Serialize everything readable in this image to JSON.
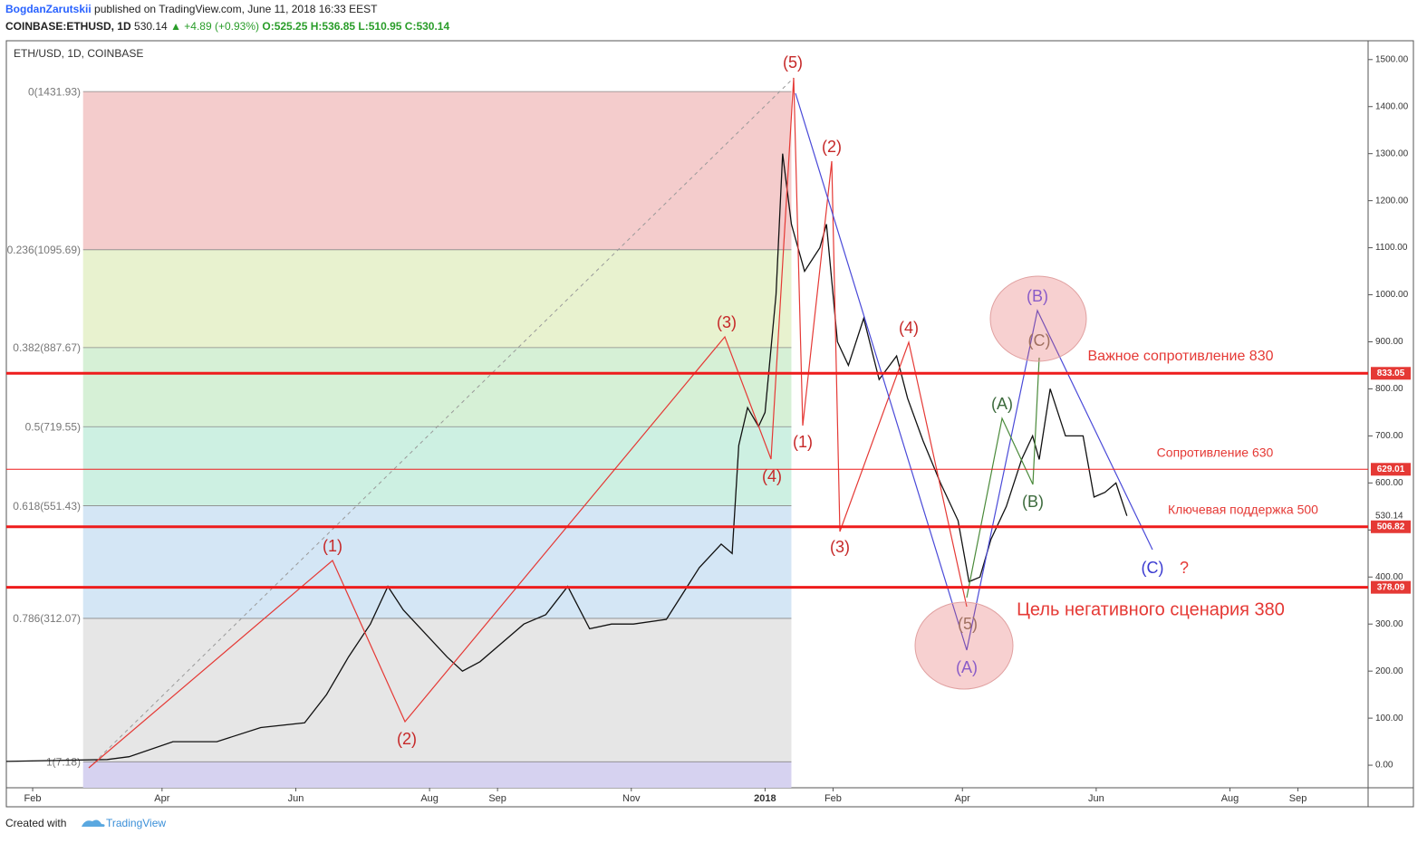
{
  "header": {
    "author": "BogdanZarutskii",
    "published": "published on TradingView.com, June 11, 2018 16:33 EEST",
    "symbol": "COINBASE:ETHUSD, 1D",
    "last": "530.14",
    "change": "▲ +4.89 (+0.93%)",
    "ohlc": "O:525.25 H:536.85 L:510.95 C:530.14"
  },
  "chart_data": {
    "type": "line",
    "title": "ETH/USD, 1D, COINBASE",
    "color": "#111111",
    "x": [
      -346,
      -300,
      -290,
      -270,
      -250,
      -230,
      -210,
      -200,
      -190,
      -180,
      -172,
      -165,
      -155,
      -145,
      -138,
      -130,
      -120,
      -110,
      -100,
      -90,
      -80,
      -70,
      -60,
      -45,
      -30,
      -20,
      -15,
      -12,
      -8,
      -3,
      0,
      5,
      8,
      12,
      18,
      25,
      28,
      33,
      38,
      45,
      52,
      60,
      65,
      72,
      80,
      88,
      93,
      98,
      103,
      110,
      117,
      122,
      125,
      130,
      137,
      145,
      150,
      155,
      160,
      165
    ],
    "values": [
      8,
      12,
      18,
      50,
      50,
      80,
      90,
      150,
      230,
      300,
      380,
      330,
      280,
      230,
      200,
      220,
      260,
      300,
      320,
      380,
      290,
      300,
      300,
      310,
      420,
      470,
      450,
      680,
      760,
      720,
      750,
      1000,
      1300,
      1150,
      1050,
      1100,
      1150,
      900,
      850,
      950,
      820,
      870,
      780,
      690,
      600,
      520,
      390,
      400,
      480,
      550,
      650,
      700,
      650,
      800,
      700,
      700,
      570,
      580,
      600,
      530
    ],
    "xlim": [
      -346,
      275
    ],
    "xticks": [
      {
        "value": -334,
        "label": "Feb"
      },
      {
        "value": -275,
        "label": "Apr"
      },
      {
        "value": -214,
        "label": "Jun"
      },
      {
        "value": -153,
        "label": "Aug"
      },
      {
        "value": -122,
        "label": "Sep"
      },
      {
        "value": -61,
        "label": "Nov"
      },
      {
        "value": 0,
        "label": "2018"
      },
      {
        "value": 31,
        "label": "Feb"
      },
      {
        "value": 90,
        "label": "Apr"
      },
      {
        "value": 151,
        "label": "Jun"
      },
      {
        "value": 212,
        "label": "Aug"
      },
      {
        "value": 243,
        "label": "Sep"
      }
    ],
    "ylim": [
      -48,
      1540
    ],
    "yticks": [
      {
        "value": 0,
        "label": "0.00"
      },
      {
        "value": 100,
        "label": "100.00"
      },
      {
        "value": 200,
        "label": "200.00"
      },
      {
        "value": 300,
        "label": "300.00"
      },
      {
        "value": 400,
        "label": "400.00"
      },
      {
        "value": 500,
        "label": "500.00"
      },
      {
        "value": 600,
        "label": "600.00"
      },
      {
        "value": 700,
        "label": "700.00"
      },
      {
        "value": 800,
        "label": "800.00"
      },
      {
        "value": 900,
        "label": "900.00"
      },
      {
        "value": 1000,
        "label": "1000.00"
      },
      {
        "value": 1100,
        "label": "1100.00"
      },
      {
        "value": 1200,
        "label": "1200.00"
      },
      {
        "value": 1300,
        "label": "1300.00"
      },
      {
        "value": 1400,
        "label": "1400.00"
      },
      {
        "value": 1500,
        "label": "1500.00"
      }
    ],
    "fib": {
      "x": [
        -311,
        12
      ],
      "levels": [
        {
          "label": "0(1431.93)",
          "value": 1431.93,
          "color": "#f4cccc"
        },
        {
          "label": "0.236(1095.69)",
          "value": 1095.69,
          "color": "#e8f2cf"
        },
        {
          "label": "0.382(887.67)",
          "value": 887.67,
          "color": "#d6f0d6"
        },
        {
          "label": "0.5(719.55)",
          "value": 719.55,
          "color": "#cdf0e2"
        },
        {
          "label": "0.618(551.43)",
          "value": 551.43,
          "color": "#d4e6f5"
        },
        {
          "label": "0.786(312.07)",
          "value": 312.07,
          "color": "#e6e6e6"
        },
        {
          "label": "1(7.18)",
          "value": 7.18,
          "color": "#d6d2f0"
        }
      ]
    },
    "levels": [
      {
        "value": 833.05,
        "bold": true
      },
      {
        "value": 629.01,
        "bold": false
      },
      {
        "value": 506.82,
        "bold": true
      },
      {
        "value": 378.09,
        "bold": true
      }
    ],
    "last_price": 530.14,
    "annotations": [
      "(5)",
      "(2)",
      "(1)",
      "(3)",
      "(4)",
      "(3)",
      "(4)",
      "(1)",
      "(2)",
      "(B)",
      "(C)",
      "(A)",
      "(B)",
      "(5)",
      "(A)",
      "(C)",
      "?",
      "Важное сопротивление 830",
      "Сопротивление 630",
      "Ключевая поддержка 500",
      "Цель негативного сценария 380"
    ]
  },
  "footer": {
    "created": "Created with",
    "brand": "TradingView"
  }
}
